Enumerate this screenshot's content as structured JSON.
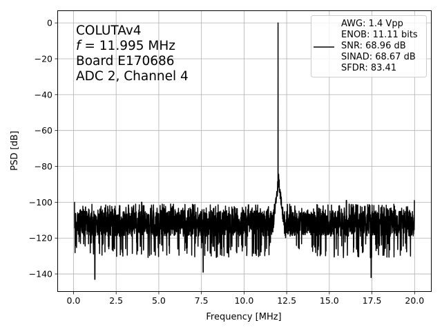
{
  "chart_data": {
    "type": "line",
    "xlabel": "Frequency [MHz]",
    "ylabel": "PSD [dB]",
    "xlim": [
      -0.95,
      21.0
    ],
    "ylim": [
      -150,
      7
    ],
    "xticks": [
      0.0,
      2.5,
      5.0,
      7.5,
      10.0,
      12.5,
      15.0,
      17.5,
      20.0
    ],
    "xtick_labels": [
      "0.0",
      "2.5",
      "5.0",
      "7.5",
      "10.0",
      "12.5",
      "15.0",
      "17.5",
      "20.0"
    ],
    "yticks": [
      0,
      -20,
      -40,
      -60,
      -80,
      -100,
      -120,
      -140
    ],
    "ytick_labels": [
      "0",
      "−20",
      "−40",
      "−60",
      "−80",
      "−100",
      "−120",
      "−140"
    ],
    "grid": true,
    "annotation": {
      "line1": "COLUTAv4",
      "line2_italic": "f",
      "line2_rest": " = 11.995 MHz",
      "line3": "Board E170686",
      "line4": "ADC 2, Channel 4"
    },
    "legend": {
      "placement": "top-right",
      "lines": [
        "AWG: 1.4 Vpp",
        "ENOB: 11.11 bits",
        "SNR: 68.96 dB",
        "SINAD: 68.67 dB",
        "SFDR: 83.41"
      ]
    },
    "series": [
      {
        "color": "#000000",
        "noise_floor_db": -112,
        "noise_band_db": [
          -122,
          -101
        ],
        "features": [
          {
            "kind": "fundamental",
            "x": 11.995,
            "y": 0
          },
          {
            "kind": "skirt",
            "x_range": [
              11.6,
              12.45
            ],
            "y_peak": -84
          },
          {
            "kind": "spur",
            "x": 4.0,
            "y": -100
          },
          {
            "kind": "spur",
            "x": 16.0,
            "y": -99
          },
          {
            "kind": "spur",
            "x": 20.0,
            "y": -99
          },
          {
            "kind": "spur",
            "x": 0.05,
            "y": -100
          },
          {
            "kind": "dip",
            "x": 1.25,
            "y": -143
          },
          {
            "kind": "dip",
            "x": 17.45,
            "y": -142
          },
          {
            "kind": "dip",
            "x": 7.6,
            "y": -139
          }
        ]
      }
    ]
  }
}
